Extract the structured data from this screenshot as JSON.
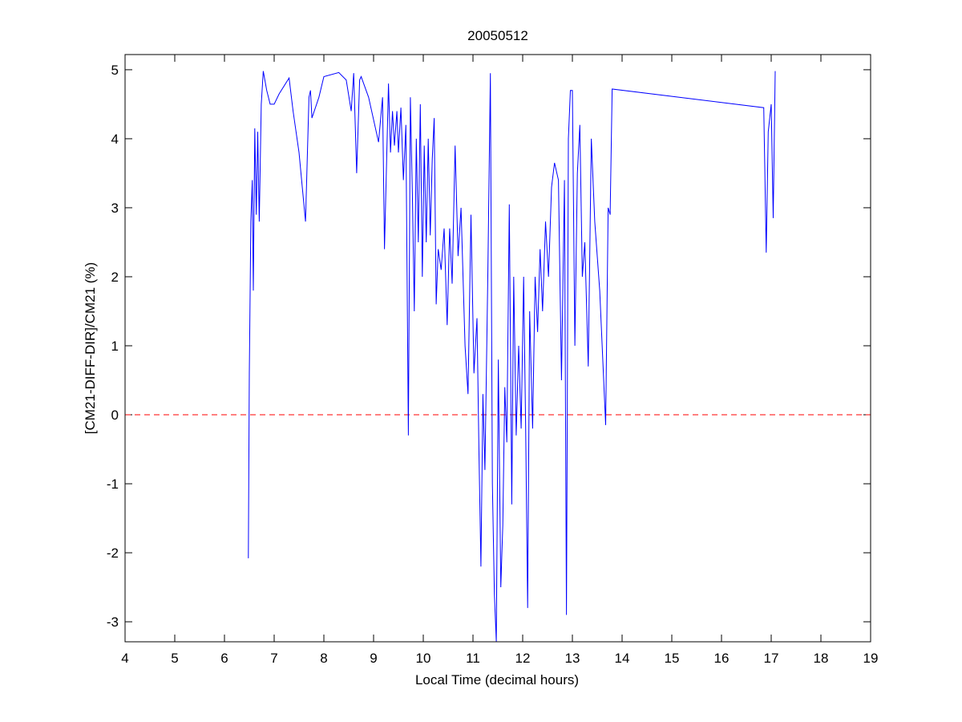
{
  "chart_data": {
    "type": "line",
    "title": "20050512",
    "xlabel": "Local Time (decimal hours)",
    "ylabel": "[CM21-DIFF-DIR]/CM21 (%)",
    "xlim": [
      4,
      19
    ],
    "xticks": [
      4,
      5,
      6,
      7,
      8,
      9,
      10,
      11,
      12,
      13,
      14,
      15,
      16,
      17,
      18,
      19
    ],
    "ylim": [
      -3.29,
      5.22
    ],
    "yticks": [
      -3,
      -2,
      -1,
      0,
      1,
      2,
      3,
      4,
      5
    ],
    "hline": {
      "value": 0,
      "color": "#ff0000"
    },
    "series": [
      {
        "color": "#0000ff",
        "x": [
          6.48,
          6.5,
          6.53,
          6.56,
          6.58,
          6.61,
          6.64,
          6.67,
          6.7,
          6.74,
          6.78,
          6.85,
          6.92,
          7.0,
          7.1,
          7.3,
          7.38,
          7.5,
          7.63,
          7.7,
          7.73,
          7.76,
          7.9,
          8.0,
          8.3,
          8.45,
          8.55,
          8.6,
          8.66,
          8.72,
          8.75,
          8.9,
          9.1,
          9.18,
          9.22,
          9.3,
          9.34,
          9.38,
          9.42,
          9.47,
          9.5,
          9.55,
          9.6,
          9.65,
          9.7,
          9.74,
          9.78,
          9.82,
          9.86,
          9.9,
          9.94,
          9.98,
          10.02,
          10.06,
          10.1,
          10.14,
          10.18,
          10.22,
          10.26,
          10.3,
          10.36,
          10.42,
          10.48,
          10.53,
          10.58,
          10.64,
          10.7,
          10.76,
          10.84,
          10.9,
          10.96,
          11.02,
          11.08,
          11.12,
          11.16,
          11.2,
          11.24,
          11.3,
          11.35,
          11.39,
          11.43,
          11.47,
          11.51,
          11.56,
          11.6,
          11.64,
          11.68,
          11.73,
          11.78,
          11.82,
          11.87,
          11.92,
          11.97,
          12.02,
          12.06,
          12.1,
          12.14,
          12.2,
          12.25,
          12.3,
          12.35,
          12.4,
          12.46,
          12.52,
          12.58,
          12.64,
          12.72,
          12.78,
          12.84,
          12.88,
          12.92,
          12.96,
          13.0,
          13.05,
          13.1,
          13.15,
          13.2,
          13.25,
          13.32,
          13.38,
          13.45,
          13.55,
          13.67,
          13.72,
          13.76,
          13.8,
          16.85,
          16.9,
          16.94,
          17.0,
          17.04,
          17.08
        ],
        "values": [
          -2.08,
          0.6,
          2.8,
          3.4,
          1.8,
          4.15,
          2.9,
          4.1,
          2.8,
          4.5,
          4.98,
          4.7,
          4.5,
          4.5,
          4.65,
          4.88,
          4.4,
          3.8,
          2.8,
          4.6,
          4.7,
          4.3,
          4.6,
          4.9,
          4.96,
          4.85,
          4.4,
          4.95,
          3.5,
          4.85,
          4.9,
          4.6,
          3.95,
          4.6,
          2.4,
          4.8,
          3.8,
          4.4,
          3.9,
          4.4,
          3.8,
          4.45,
          3.4,
          4.2,
          -0.3,
          4.6,
          3.2,
          1.5,
          4.0,
          2.5,
          4.5,
          2.0,
          3.9,
          2.5,
          4.0,
          2.6,
          3.7,
          4.3,
          1.6,
          2.4,
          2.1,
          2.7,
          1.3,
          2.7,
          1.9,
          3.9,
          2.3,
          3.0,
          1.0,
          0.3,
          2.9,
          0.6,
          1.4,
          -0.5,
          -2.2,
          0.3,
          -0.8,
          2.1,
          4.95,
          -1.0,
          -2.6,
          -3.29,
          0.8,
          -2.5,
          -1.6,
          0.4,
          -0.4,
          3.05,
          -1.3,
          2.0,
          -0.3,
          1.0,
          -0.2,
          2.0,
          -0.2,
          -2.8,
          1.5,
          -0.2,
          2.0,
          1.2,
          2.4,
          1.5,
          2.8,
          2.0,
          3.3,
          3.65,
          3.4,
          0.5,
          3.4,
          -2.9,
          4.0,
          4.7,
          4.7,
          1.0,
          3.5,
          4.2,
          2.0,
          2.5,
          0.7,
          4.0,
          2.8,
          1.8,
          -0.15,
          3.0,
          2.9,
          4.72,
          4.45,
          2.35,
          4.1,
          4.5,
          2.85,
          4.98
        ]
      }
    ]
  }
}
